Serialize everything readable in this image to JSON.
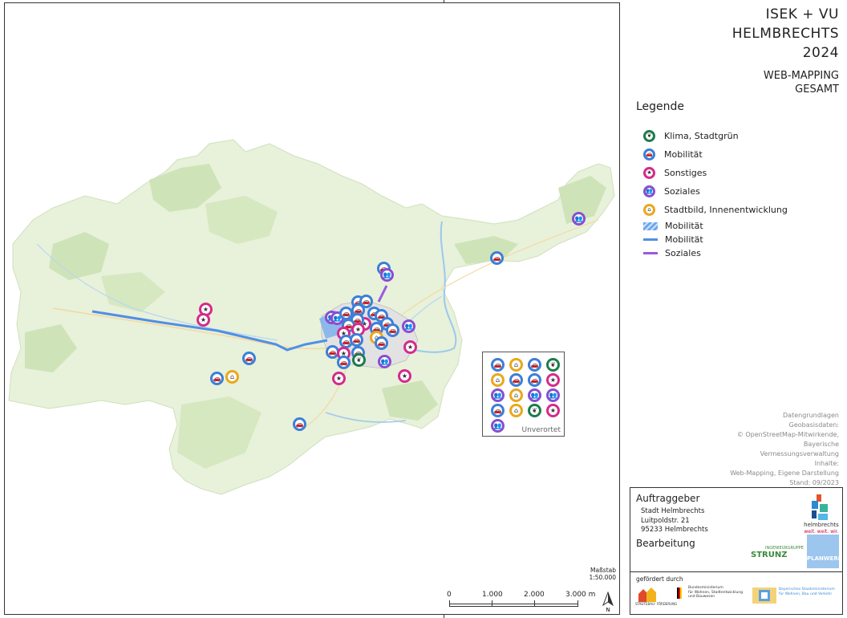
{
  "title": {
    "line1": "ISEK + VU",
    "line2": "HELMBRECHTS",
    "line3": "2024",
    "sub1": "WEB-MAPPING",
    "sub2": "GESAMT"
  },
  "legend": {
    "title": "Legende",
    "items": [
      {
        "label": "Klima, Stadtgrün",
        "category": "klima",
        "icon": "leaf-icon"
      },
      {
        "label": "Mobilität",
        "category": "mobilitaet",
        "icon": "car-icon"
      },
      {
        "label": "Sonstiges",
        "category": "sonstiges",
        "icon": "pin-icon"
      },
      {
        "label": "Soziales",
        "category": "soziales",
        "icon": "people-icon"
      },
      {
        "label": "Stadtbild, Innenentwicklung",
        "category": "stadtbild",
        "icon": "house-icon"
      }
    ],
    "area_items": [
      {
        "label": "Mobilität",
        "kind": "hatched-area"
      },
      {
        "label": "Mobilität",
        "kind": "blue-line"
      },
      {
        "label": "Soziales",
        "kind": "purple-line"
      }
    ]
  },
  "colors": {
    "klima": "#1b7d4a",
    "mobilitaet": "#3b7fd8",
    "sonstiges": "#d62a8c",
    "soziales": "#8a4dd0",
    "stadtbild": "#e9a81b"
  },
  "sources": {
    "l1": "Datengrundlagen",
    "l2": "Geobasisdaten:",
    "l3": "© OpenStreetMap-Mitwirkende,",
    "l4": "Bayerische",
    "l5": "Vermessungsverwaltung",
    "l6": "Inhalte:",
    "l7": "Web-Mapping, Eigene Darstellung",
    "l8": "Stand: 09/2023"
  },
  "client": {
    "title": "Auftraggeber",
    "name": "Stadt Helmbrechts",
    "street": "Luitpoldstr. 21",
    "city": "95233 Helmbrechts",
    "editor_title": "Bearbeitung",
    "funded_label": "gefördert durch",
    "logo_helmbrechts": "helmbrechts",
    "logo_helmbrechts_tag": "weit. weit. wir.",
    "logo_strunz": "STRUNZ",
    "logo_strunz_sub": "INGENIEURGRUPPE",
    "logo_planwerk": "PLANWERK",
    "logo_staedtebau": "STÄDTEBAU-\nFÖRDERUNG",
    "logo_bund_1": "Bundesministerium",
    "logo_bund_2": "für Wohnen, Stadtentwicklung",
    "logo_bund_3": "und Bauwesen",
    "logo_bayern_1": "Bayerisches Staatsministerium",
    "logo_bayern_2": "für Wohnen, Bau und Verkehr"
  },
  "scale": {
    "label1": "Maßstab",
    "label2": "1:50.000",
    "ticks": [
      "0",
      "1.000",
      "2.000",
      "3.000 m"
    ],
    "north": "N"
  },
  "unverortet": {
    "label": "Unverortet",
    "markers": [
      "mobilitaet",
      "stadtbild",
      "mobilitaet",
      "klima",
      "stadtbild",
      "mobilitaet",
      "mobilitaet",
      "sonstiges",
      "soziales",
      "stadtbild",
      "soziales",
      "soziales",
      "mobilitaet",
      "stadtbild",
      "klima",
      "sonstiges",
      "soziales"
    ]
  },
  "map_markers": [
    {
      "category": "soziales"
    },
    {
      "category": "mobilitaet"
    },
    {
      "category": "mobilitaet"
    },
    {
      "category": "soziales"
    },
    {
      "category": "sonstiges"
    },
    {
      "category": "sonstiges"
    },
    {
      "category": "mobilitaet"
    },
    {
      "category": "mobilitaet"
    },
    {
      "category": "stadtbild"
    },
    {
      "category": "mobilitaet"
    },
    {
      "category": "sonstiges"
    },
    {
      "category": "sonstiges"
    },
    {
      "category": "soziales"
    },
    {
      "category": "sonstiges"
    },
    {
      "category": "mobilitaet"
    },
    {
      "category": "mobilitaet"
    }
  ]
}
